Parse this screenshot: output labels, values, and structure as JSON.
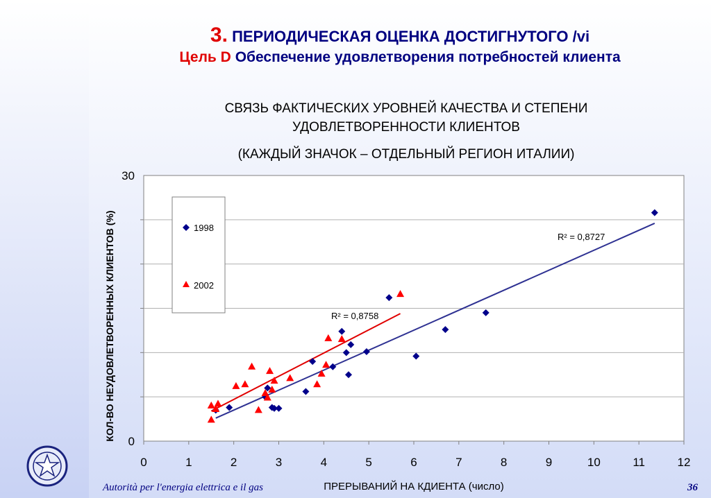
{
  "slide": {
    "number_prefix": "3.",
    "title_line1": "ПЕРИОДИЧЕСКАЯ ОЦЕНКА ДОСТИГНУТОГО /vi",
    "goal_prefix": "Цель D",
    "goal_text": "Обеспечение удовлетворения потребностей клиента",
    "subtitle_line1": "СВЯЗЬ ФАКТИЧЕСКИХ УРОВНЕЙ КАЧЕСТВА И СТЕПЕНИ",
    "subtitle_line2": "УДОВЛЕТВОРЕННОСТИ КЛИЕНТОВ",
    "note": "(КАЖДЫЙ ЗНАЧОК – ОТДЕЛЬНЫЙ РЕГИОН ИТАЛИИ)",
    "footer": "Autorità per l'energia elettrica e il gas",
    "page_number": "36"
  },
  "colors": {
    "title_navy": "#000080",
    "accent_red": "#e00000",
    "series_1998": "#00008b",
    "series_2002": "#ff0000",
    "trend_1998": "#2e3192",
    "trend_2002": "#e00000"
  },
  "chart_data": {
    "type": "scatter",
    "xlabel": "ПРЕРЫВАНИЙ НА КДИЕНТА (число)",
    "ylabel": "КОЛ-ВО НЕУДОВЛЕТВОРЕННЫХ КЛИЕНТОВ (%)",
    "xlim": [
      0,
      12
    ],
    "ylim": [
      0,
      30
    ],
    "x_ticks": [
      "0",
      "1",
      "2",
      "3",
      "4",
      "5",
      "6",
      "7",
      "8",
      "9",
      "10",
      "11",
      "12"
    ],
    "y_ticks": [
      "0",
      "30"
    ],
    "grid": "horizontal",
    "legend_position": "top-left",
    "series": [
      {
        "name": "1998",
        "marker": "diamond",
        "points": [
          [
            1.6,
            3.5
          ],
          [
            1.9,
            3.8
          ],
          [
            2.7,
            5.0
          ],
          [
            2.75,
            6.0
          ],
          [
            2.85,
            3.8
          ],
          [
            2.9,
            3.7
          ],
          [
            3.0,
            3.7
          ],
          [
            3.6,
            5.6
          ],
          [
            3.75,
            9.0
          ],
          [
            4.2,
            8.4
          ],
          [
            4.4,
            12.4
          ],
          [
            4.5,
            10.0
          ],
          [
            4.55,
            7.5
          ],
          [
            4.6,
            10.9
          ],
          [
            4.95,
            10.1
          ],
          [
            5.45,
            16.2
          ],
          [
            6.05,
            9.6
          ],
          [
            6.7,
            12.6
          ],
          [
            7.6,
            14.5
          ],
          [
            11.35,
            25.8
          ]
        ],
        "trendline": {
          "x": [
            1.6,
            11.35
          ],
          "y": [
            2.6,
            24.6
          ],
          "r2_label": "R² = 0,8727"
        }
      },
      {
        "name": "2002",
        "marker": "triangle",
        "points": [
          [
            1.5,
            2.4
          ],
          [
            1.5,
            4.0
          ],
          [
            1.6,
            3.6
          ],
          [
            1.65,
            4.2
          ],
          [
            2.05,
            6.2
          ],
          [
            2.25,
            6.4
          ],
          [
            2.4,
            8.4
          ],
          [
            2.55,
            3.5
          ],
          [
            2.7,
            5.4
          ],
          [
            2.75,
            4.9
          ],
          [
            2.8,
            7.9
          ],
          [
            2.85,
            5.8
          ],
          [
            2.9,
            6.8
          ],
          [
            3.25,
            7.1
          ],
          [
            3.85,
            6.4
          ],
          [
            3.95,
            7.6
          ],
          [
            4.05,
            8.6
          ],
          [
            4.1,
            11.6
          ],
          [
            4.4,
            11.5
          ],
          [
            5.7,
            16.6
          ]
        ],
        "trendline": {
          "x": [
            1.5,
            5.7
          ],
          "y": [
            3.4,
            14.4
          ],
          "r2_label": "R² = 0,8758"
        }
      }
    ]
  }
}
